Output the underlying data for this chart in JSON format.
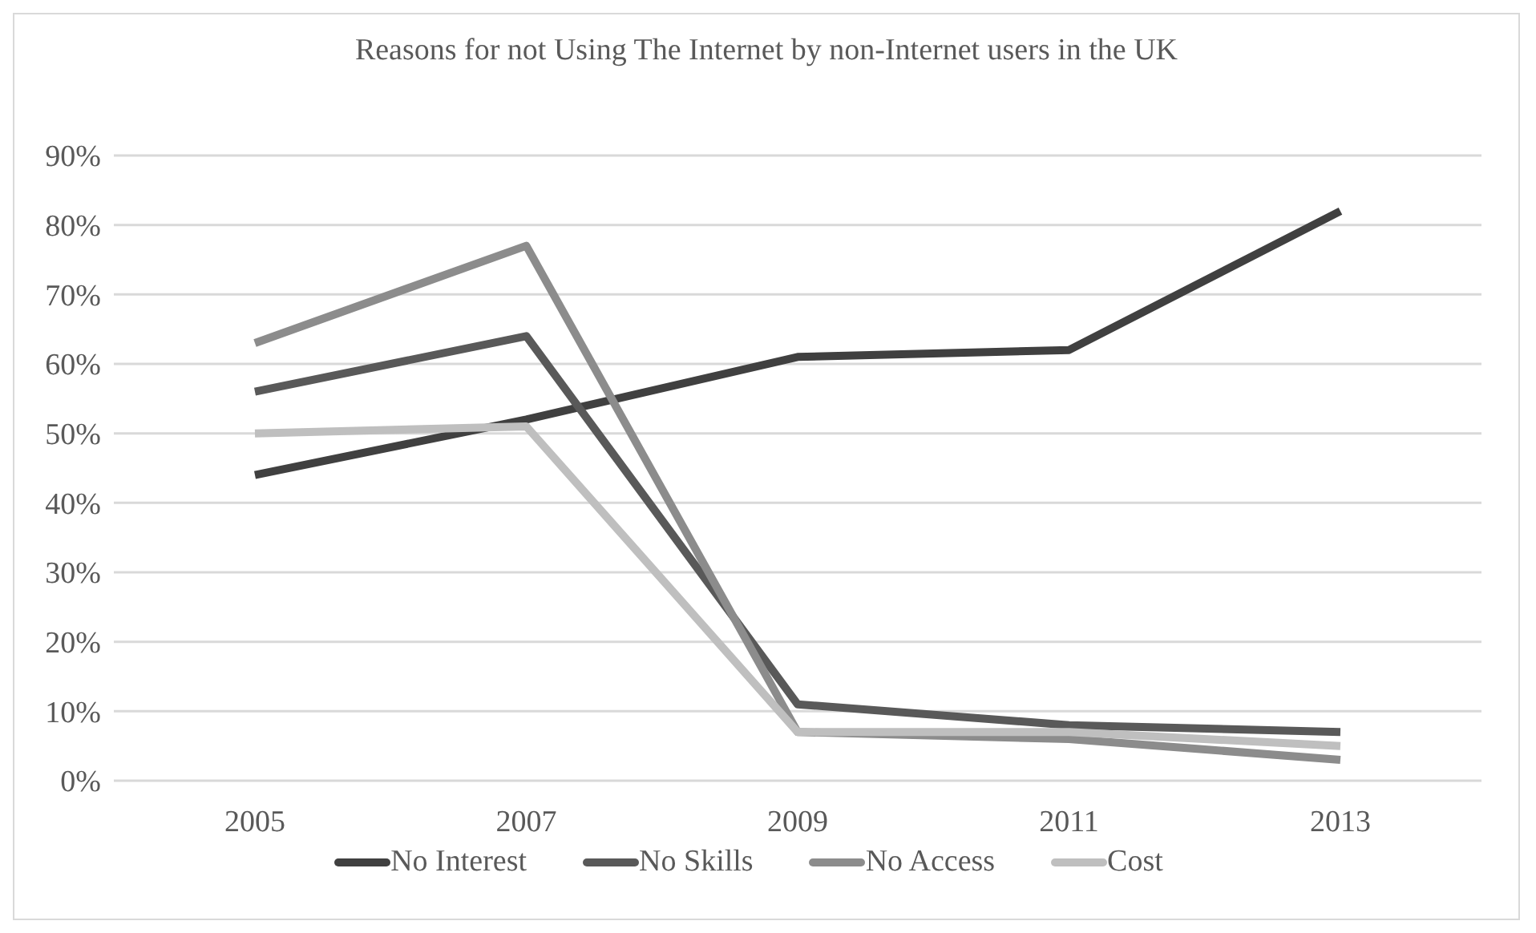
{
  "chart_data": {
    "type": "line",
    "title": "Reasons for not Using The Internet by non-Internet users in the UK",
    "categories": [
      "2005",
      "2007",
      "2009",
      "2011",
      "2013"
    ],
    "series": [
      {
        "name": "No Interest",
        "color": "#404040",
        "values": [
          44,
          52,
          61,
          62,
          82
        ]
      },
      {
        "name": "No Skills",
        "color": "#595959",
        "values": [
          56,
          64,
          11,
          8,
          7
        ]
      },
      {
        "name": "No Access",
        "color": "#8c8c8c",
        "values": [
          63,
          77,
          7,
          6,
          3
        ]
      },
      {
        "name": "Cost",
        "color": "#bfbfbf",
        "values": [
          50,
          51,
          7,
          7,
          5
        ]
      }
    ],
    "ylim": [
      0,
      90
    ],
    "yticks": [
      {
        "value": 0,
        "label": "0%"
      },
      {
        "value": 10,
        "label": "10%"
      },
      {
        "value": 20,
        "label": "20%"
      },
      {
        "value": 30,
        "label": "30%"
      },
      {
        "value": 40,
        "label": "40%"
      },
      {
        "value": 50,
        "label": "50%"
      },
      {
        "value": 60,
        "label": "60%"
      },
      {
        "value": 70,
        "label": "70%"
      },
      {
        "value": 80,
        "label": "80%"
      },
      {
        "value": 90,
        "label": "90%"
      }
    ],
    "grid": "y",
    "legend": "bottom",
    "marker": "none",
    "line_style": "solid"
  }
}
